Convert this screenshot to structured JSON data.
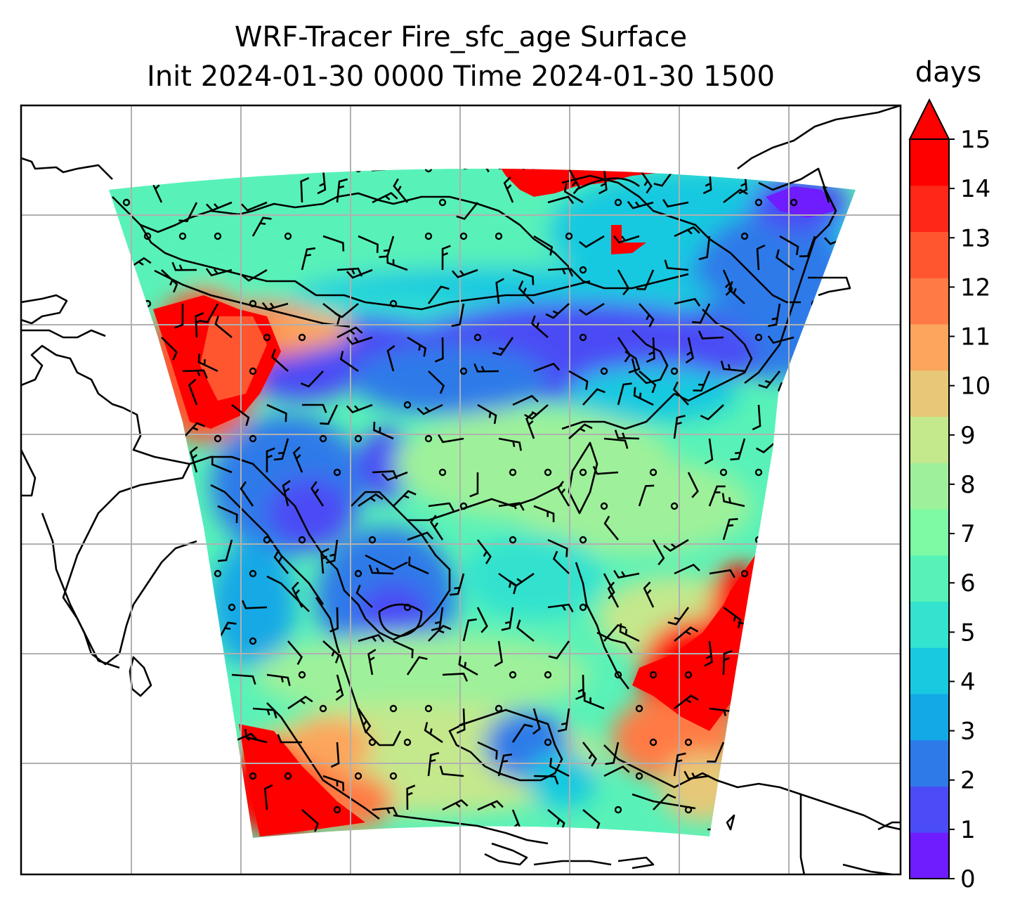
{
  "title_line1": "WRF-Tracer Fire_sfc_age Surface",
  "title_line2": "Init 2024-01-30 0000 Time 2024-01-30 1500",
  "colorbar": {
    "label": "days",
    "min": 0,
    "max": 15,
    "extend": "max",
    "ticks": [
      "0",
      "1",
      "2",
      "3",
      "4",
      "5",
      "6",
      "7",
      "8",
      "9",
      "10",
      "11",
      "12",
      "13",
      "14",
      "15"
    ],
    "colors": [
      "#6f1cff",
      "#4b4cf5",
      "#2f7ae9",
      "#12a9e6",
      "#19c9e0",
      "#33e2cf",
      "#58f2b8",
      "#7dfaa3",
      "#9ef19a",
      "#c4e88c",
      "#e6c878",
      "#fca55c",
      "#ff7a45",
      "#ff5630",
      "#ff2718",
      "#ff0000"
    ]
  },
  "map": {
    "colormap": "rainbow",
    "gridlines": true,
    "overlays": [
      "coastlines",
      "wind-barbs",
      "calm-circles"
    ]
  }
}
